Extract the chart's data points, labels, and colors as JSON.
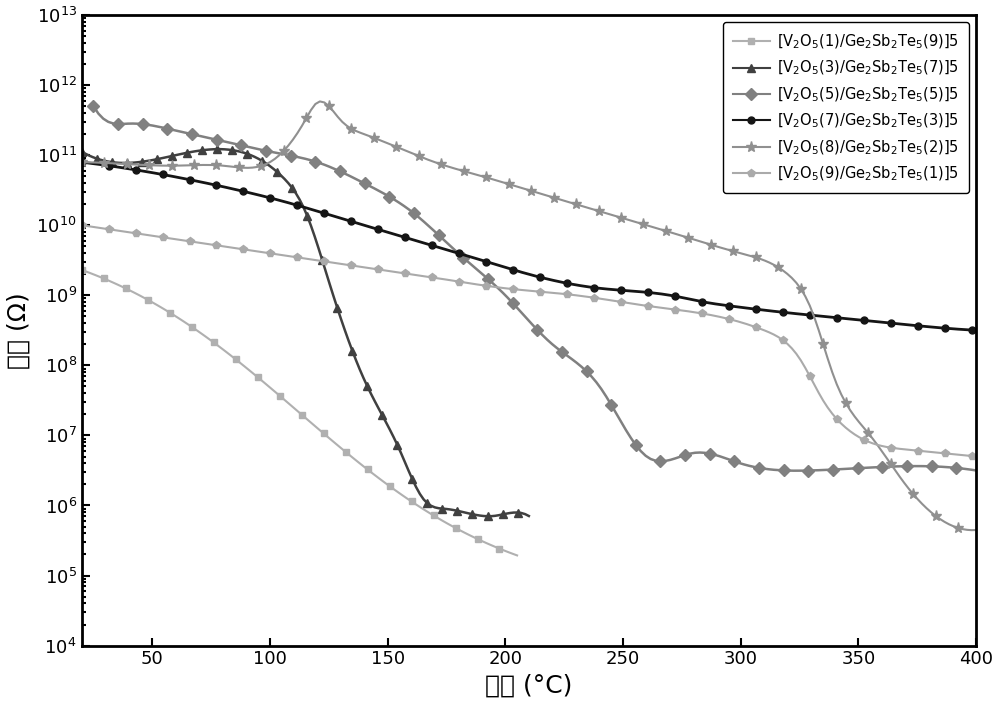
{
  "title": "",
  "xlabel": "温度 (°C)",
  "ylabel": "电阔 (Ω)",
  "xlim": [
    20,
    400
  ],
  "ylim_log": [
    4,
    13
  ],
  "xticks": [
    50,
    100,
    150,
    200,
    250,
    300,
    350,
    400
  ],
  "colors": [
    "#b0b0b0",
    "#404040",
    "#808080",
    "#151515",
    "#909090",
    "#aaaaaa"
  ],
  "markers": [
    "s",
    "^",
    "D",
    "o",
    "*",
    "p"
  ],
  "msizes": [
    5,
    6,
    6,
    5,
    8,
    6
  ],
  "legend_labels": [
    "[V$_2$O$_5$(1)/Ge$_2$Sb$_2$Te$_5$(9)]5",
    "[V$_2$O$_5$(3)/Ge$_2$Sb$_2$Te$_5$(7)]5",
    "[V$_2$O$_5$(5)/Ge$_2$Sb$_2$Te$_5$(5)]5",
    "[V$_2$O$_5$(7)/Ge$_2$Sb$_2$Te$_5$(3)]5",
    "[V$_2$O$_5$(8)/Ge$_2$Sb$_2$Te$_5$(2)]5",
    "[V$_2$O$_5$(9)/Ge$_2$Sb$_2$Te$_5$(1)]5"
  ]
}
